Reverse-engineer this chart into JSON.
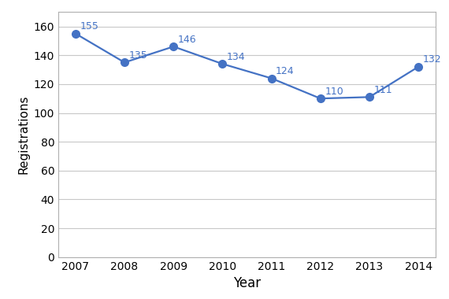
{
  "years": [
    2007,
    2008,
    2009,
    2010,
    2011,
    2012,
    2013,
    2014
  ],
  "values": [
    155,
    135,
    146,
    134,
    124,
    110,
    111,
    132
  ],
  "line_color": "#4472C4",
  "marker_color": "#4472C4",
  "marker_style": "o",
  "marker_size": 7,
  "line_width": 1.6,
  "xlabel": "Year",
  "ylabel": "Registrations",
  "xlabel_fontsize": 12,
  "ylabel_fontsize": 11,
  "tick_fontsize": 10,
  "annotation_fontsize": 9,
  "annotation_color": "#4472C4",
  "ylim": [
    0,
    170
  ],
  "yticks": [
    0,
    20,
    40,
    60,
    80,
    100,
    120,
    140,
    160
  ],
  "grid_color": "#c8c8c8",
  "background_color": "#ffffff",
  "spine_color": "#b0b0b0"
}
